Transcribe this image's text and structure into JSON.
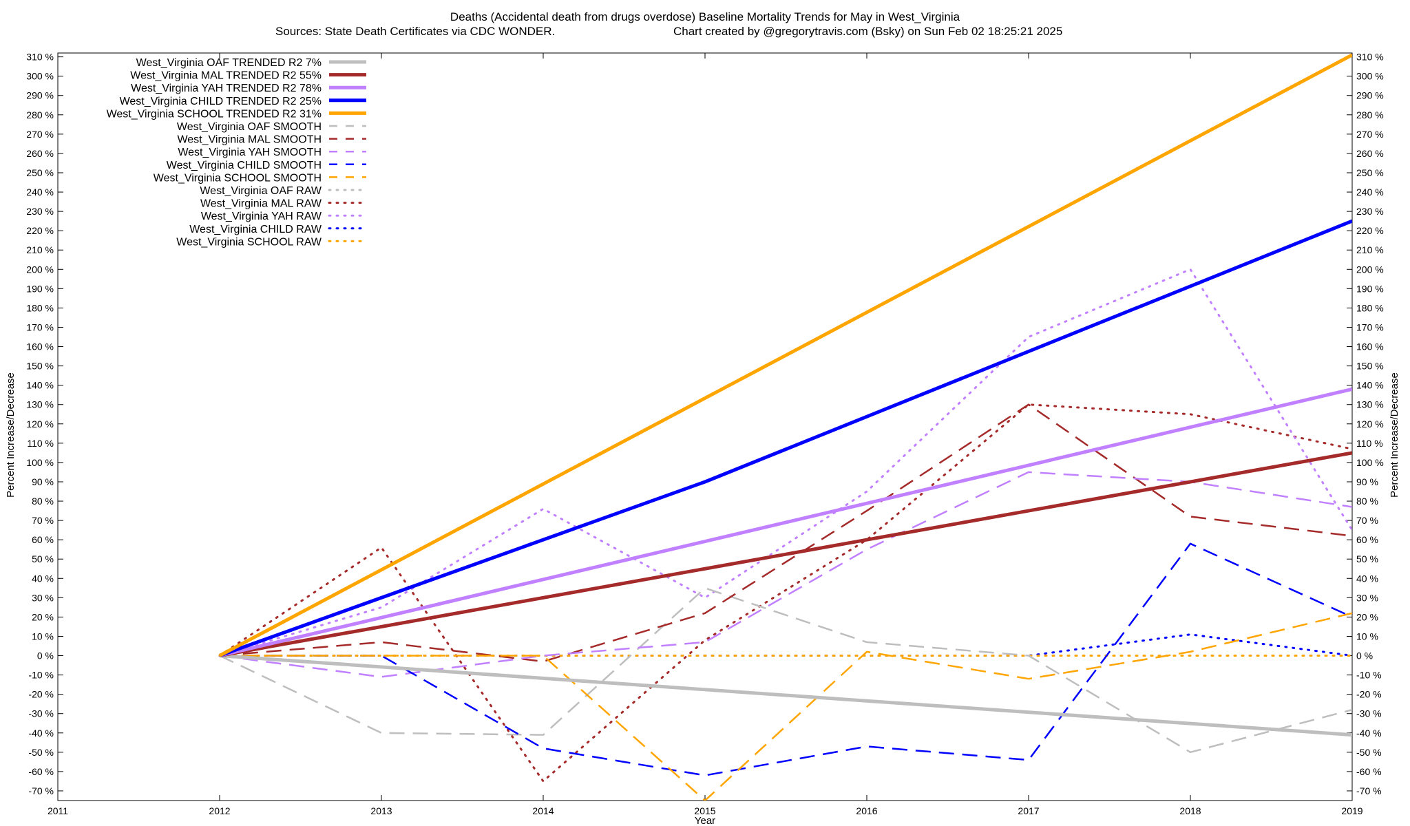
{
  "chart_data": {
    "type": "line",
    "title": "Deaths (Accidental death from drugs overdose)  Baseline Mortality Trends for May in West_Virginia",
    "subtitle_left": "Sources: State Death Certificates via CDC WONDER.",
    "subtitle_right": "Chart created by @gregorytravis.com (Bsky) on Sun Feb 02 18:25:21 2025",
    "xlabel": "Year",
    "ylabel": "Percent Increase/Decrease",
    "xlim": [
      2011,
      2019
    ],
    "ylim": [
      -75,
      312
    ],
    "x_ticks": [
      "2011",
      "2012",
      "2013",
      "2014",
      "2015",
      "2016",
      "2017",
      "2018",
      "2019"
    ],
    "y_ticks": [
      "310 %",
      "300 %",
      "290 %",
      "280 %",
      "270 %",
      "260 %",
      "250 %",
      "240 %",
      "230 %",
      "220 %",
      "210 %",
      "200 %",
      "190 %",
      "180 %",
      "170 %",
      "160 %",
      "150 %",
      "140 %",
      "130 %",
      "120 %",
      "110 %",
      "100 %",
      "90 %",
      "80 %",
      "70 %",
      "60 %",
      "50 %",
      "40 %",
      "30 %",
      "20 %",
      "10 %",
      "0 %",
      "-10 %",
      "-20 %",
      "-30 %",
      "-40 %",
      "-50 %",
      "-60 %",
      "-70 %"
    ],
    "legend_position": "top-left",
    "grid": false,
    "series": [
      {
        "name": "West_Virginia OAF TRENDED R2  7%",
        "style": "solid",
        "color": "#bebebe",
        "x": [
          2012,
          2019
        ],
        "y": [
          0,
          -41
        ]
      },
      {
        "name": "West_Virginia MAL TRENDED R2  55%",
        "style": "solid",
        "color": "#a52a2a",
        "x": [
          2012,
          2019
        ],
        "y": [
          0,
          105
        ]
      },
      {
        "name": "West_Virginia YAH TRENDED R2  78%",
        "style": "solid",
        "color": "#c080ff",
        "x": [
          2012,
          2019
        ],
        "y": [
          0,
          138
        ]
      },
      {
        "name": "West_Virginia CHILD TRENDED R2  25%",
        "style": "solid",
        "color": "#0000ff",
        "x": [
          2012,
          2015,
          2019
        ],
        "y": [
          0,
          90,
          225
        ]
      },
      {
        "name": "West_Virginia SCHOOL TRENDED R2  31%",
        "style": "solid",
        "color": "#ffa500",
        "x": [
          2012,
          2019
        ],
        "y": [
          0,
          311
        ]
      },
      {
        "name": "West_Virginia OAF SMOOTH",
        "style": "dashed",
        "color": "#bebebe",
        "x": [
          2012,
          2013,
          2014,
          2015,
          2016,
          2017,
          2018,
          2019
        ],
        "y": [
          0,
          -40,
          -41,
          35,
          7,
          0,
          -50,
          -28
        ]
      },
      {
        "name": "West_Virginia MAL SMOOTH",
        "style": "dashed",
        "color": "#a52a2a",
        "x": [
          2012,
          2013,
          2014,
          2015,
          2016,
          2017,
          2018,
          2019
        ],
        "y": [
          0,
          7,
          -3,
          22,
          75,
          130,
          72,
          62
        ]
      },
      {
        "name": "West_Virginia YAH SMOOTH",
        "style": "dashed",
        "color": "#c080ff",
        "x": [
          2012,
          2013,
          2014,
          2015,
          2016,
          2017,
          2018,
          2019
        ],
        "y": [
          0,
          -11,
          0,
          7,
          55,
          95,
          90,
          77
        ]
      },
      {
        "name": "West_Virginia CHILD SMOOTH",
        "style": "dashed",
        "color": "#0000ff",
        "x": [
          2012,
          2013,
          2014,
          2015,
          2016,
          2017,
          2018,
          2019
        ],
        "y": [
          0,
          0,
          -48,
          -62,
          -47,
          -54,
          58,
          20
        ]
      },
      {
        "name": "West_Virginia SCHOOL SMOOTH",
        "style": "dashed",
        "color": "#ffa500",
        "x": [
          2012,
          2013,
          2014,
          2015,
          2016,
          2017,
          2018,
          2019
        ],
        "y": [
          0,
          0,
          0,
          -75,
          2,
          -12,
          2,
          22
        ]
      },
      {
        "name": "West_Virginia OAF RAW",
        "style": "dotted",
        "color": "#bebebe",
        "x": [
          2012,
          2013,
          2014,
          2015,
          2016,
          2017,
          2018,
          2019
        ],
        "y": [
          0,
          0,
          0,
          0,
          0,
          0,
          0,
          0
        ]
      },
      {
        "name": "West_Virginia MAL RAW",
        "style": "dotted",
        "color": "#a52a2a",
        "x": [
          2012,
          2013,
          2014,
          2015,
          2016,
          2017,
          2018,
          2019
        ],
        "y": [
          0,
          56,
          -65,
          8,
          60,
          130,
          125,
          107
        ]
      },
      {
        "name": "West_Virginia YAH RAW",
        "style": "dotted",
        "color": "#c080ff",
        "x": [
          2012,
          2013,
          2014,
          2015,
          2016,
          2017,
          2018,
          2019
        ],
        "y": [
          0,
          25,
          76,
          30,
          85,
          165,
          200,
          65
        ]
      },
      {
        "name": "West_Virginia CHILD RAW",
        "style": "dotted",
        "color": "#0000ff",
        "x": [
          2012,
          2013,
          2014,
          2015,
          2016,
          2017,
          2018,
          2019
        ],
        "y": [
          0,
          0,
          0,
          0,
          0,
          0,
          11,
          0
        ]
      },
      {
        "name": "West_Virginia SCHOOL RAW",
        "style": "dotted",
        "color": "#ffa500",
        "x": [
          2012,
          2013,
          2014,
          2015,
          2016,
          2017,
          2018,
          2019
        ],
        "y": [
          0,
          0,
          0,
          0,
          0,
          0,
          0,
          0
        ]
      }
    ]
  }
}
